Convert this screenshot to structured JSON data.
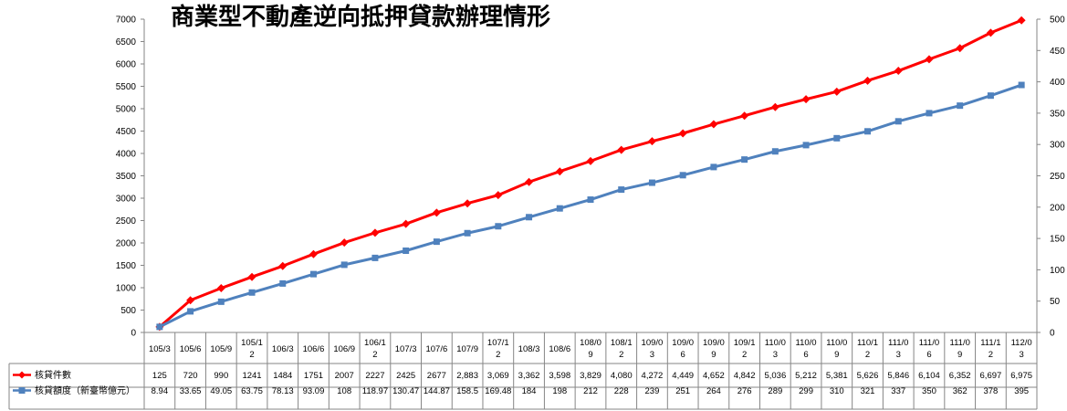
{
  "chart_data": {
    "type": "line",
    "title": "商業型不動產逆向抵押貸款辦理情形",
    "categories": [
      "105/3",
      "105/6",
      "105/9",
      "105/12",
      "106/3",
      "106/6",
      "106/9",
      "106/12",
      "107/3",
      "107/6",
      "107/9",
      "107/12",
      "108/3",
      "108/6",
      "108/09",
      "108/12",
      "109/03",
      "109/06",
      "109/09",
      "109/12",
      "110/03",
      "110/06",
      "110/09",
      "110/12",
      "111/03",
      "111/06",
      "111/09",
      "111/12",
      "112/03"
    ],
    "series": [
      {
        "name": "核貸件數",
        "axis": "left",
        "color": "#ff0000",
        "marker": "diamond",
        "values": [
          125,
          720,
          990,
          1241,
          1484,
          1751,
          2007,
          2227,
          2425,
          2677,
          2883,
          3069,
          3362,
          3598,
          3829,
          4080,
          4272,
          4449,
          4652,
          4842,
          5036,
          5212,
          5381,
          5626,
          5846,
          6104,
          6352,
          6697,
          6975
        ],
        "labels": [
          "125",
          "720",
          "990",
          "1241",
          "1484",
          "1751",
          "2007",
          "2227",
          "2425",
          "2677",
          "2,883",
          "3,069",
          "3,362",
          "3,598",
          "3,829",
          "4,080",
          "4,272",
          "4,449",
          "4,652",
          "4,842",
          "5,036",
          "5,212",
          "5,381",
          "5,626",
          "5,846",
          "6,104",
          "6,352",
          "6,697",
          "6,975"
        ]
      },
      {
        "name": "核貸額度（新臺幣億元）",
        "axis": "right",
        "color": "#4f81bd",
        "marker": "square",
        "values": [
          8.94,
          33.65,
          49.05,
          63.75,
          78.13,
          93.09,
          108,
          118.97,
          130.47,
          144.87,
          158.5,
          169.48,
          184,
          198,
          212,
          228,
          239,
          251,
          264,
          276,
          289,
          299,
          310,
          321,
          337,
          350,
          362,
          378,
          395
        ],
        "labels": [
          "8.94",
          "33.65",
          "49.05",
          "63.75",
          "78.13",
          "93.09",
          "108",
          "118.97",
          "130.47",
          "144.87",
          "158.5",
          "169.48",
          "184",
          "198",
          "212",
          "228",
          "239",
          "251",
          "264",
          "276",
          "289",
          "299",
          "310",
          "321",
          "337",
          "350",
          "362",
          "378",
          "395"
        ]
      }
    ],
    "y_left": {
      "min": 0,
      "max": 7000,
      "step": 500,
      "ticks": [
        "0",
        "500",
        "1000",
        "1500",
        "2000",
        "2500",
        "3000",
        "3500",
        "4000",
        "4500",
        "5000",
        "5500",
        "6000",
        "6500",
        "7000"
      ]
    },
    "y_right": {
      "min": 0,
      "max": 500,
      "step": 50,
      "ticks": [
        "0",
        "50",
        "100",
        "150",
        "200",
        "250",
        "300",
        "350",
        "400",
        "450",
        "500"
      ]
    },
    "grid": false,
    "legend": "data-table-left"
  }
}
